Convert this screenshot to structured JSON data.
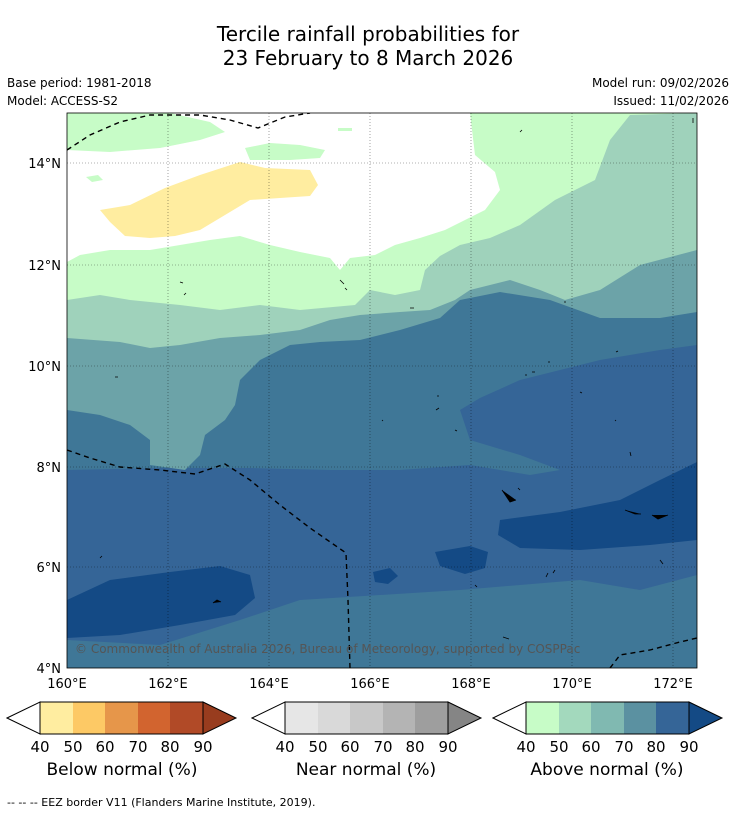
{
  "title": {
    "line1": "Tercile rainfall probabilities for",
    "line2": "23 February to 8 March 2026"
  },
  "meta": {
    "base_period": "Base period: 1981-2018",
    "model": "Model: ACCESS-S2",
    "model_run": "Model run: 09/02/2026",
    "issued": "Issued: 11/02/2026"
  },
  "map": {
    "lat_labels": [
      "14°N",
      "12°N",
      "10°N",
      "8°N",
      "6°N",
      "4°N"
    ],
    "lon_labels": [
      "160°E",
      "162°E",
      "164°E",
      "166°E",
      "168°E",
      "170°E",
      "172°E"
    ],
    "copyright": "© Commonwealth of Australia 2026, Bureau of Meteorology, supported by COSPPac"
  },
  "colorbars": [
    {
      "label": "Below normal (%)",
      "ticks": [
        "40",
        "50",
        "60",
        "70",
        "80",
        "90"
      ],
      "colors": [
        "#ffeda0",
        "#fdc965",
        "#e6964a",
        "#d2642f",
        "#b14a27",
        "#983c1e"
      ]
    },
    {
      "label": "Near normal (%)",
      "ticks": [
        "40",
        "50",
        "60",
        "70",
        "80",
        "90"
      ],
      "colors": [
        "#e6e6e6",
        "#d9d9d9",
        "#c8c8c8",
        "#b4b4b4",
        "#9e9e9e",
        "#858585"
      ]
    },
    {
      "label": "Above normal (%)",
      "ticks": [
        "40",
        "50",
        "60",
        "70",
        "80",
        "90"
      ],
      "colors": [
        "#c7fcc7",
        "#a3d9bd",
        "#80b9b1",
        "#5b91a1",
        "#356597",
        "#144a85"
      ]
    }
  ],
  "footer": "--  --  -- EEZ border V11 (Flanders Marine Institute, 2019)."
}
